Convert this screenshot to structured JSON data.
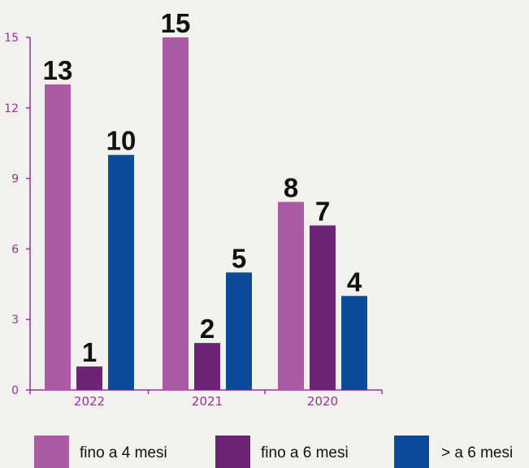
{
  "chart_data": {
    "type": "bar",
    "categories": [
      "2022",
      "2021",
      "2020"
    ],
    "series": [
      {
        "name": "fino a 4 mesi",
        "values": [
          13,
          15,
          8
        ],
        "color": "#ab5aa3"
      },
      {
        "name": "fino a 6 mesi",
        "values": [
          1,
          2,
          7
        ],
        "color": "#6b2574"
      },
      {
        "name": "> a 6 mesi",
        "values": [
          10,
          5,
          4
        ],
        "color": "#0a4b9a"
      }
    ],
    "yticks": [
      0,
      3,
      6,
      9,
      12,
      15
    ],
    "ylim": [
      0,
      15
    ],
    "axis_color": "#a0309b",
    "grid": false,
    "legend_position": "bottom",
    "title": "",
    "xlabel": "",
    "ylabel": ""
  }
}
